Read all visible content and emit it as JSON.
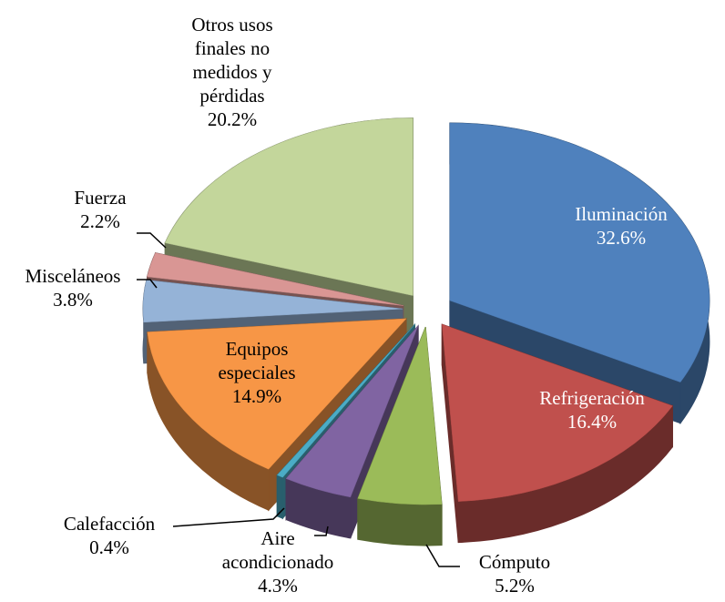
{
  "chart_data": {
    "type": "pie3d",
    "categories": [
      "Iluminación",
      "Refrigeración",
      "Cómputo",
      "Aire acondicionado",
      "Calefacción",
      "Equipos especiales",
      "Misceláneos",
      "Fuerza",
      "Otros usos finales no medidos y pérdidas"
    ],
    "values": [
      32.6,
      16.4,
      5.2,
      4.3,
      0.4,
      14.9,
      3.8,
      2.2,
      20.2
    ],
    "value_labels": [
      "32.6%",
      "16.4%",
      "5.2%",
      "4.3%",
      "0.4%",
      "14.9%",
      "3.8%",
      "2.2%",
      "20.2%"
    ],
    "colors": [
      "#4f81bd",
      "#c0504d",
      "#9bbb59",
      "#8064a2",
      "#4bacc6",
      "#f79646",
      "#95b3d7",
      "#d99694",
      "#c3d69b"
    ]
  }
}
